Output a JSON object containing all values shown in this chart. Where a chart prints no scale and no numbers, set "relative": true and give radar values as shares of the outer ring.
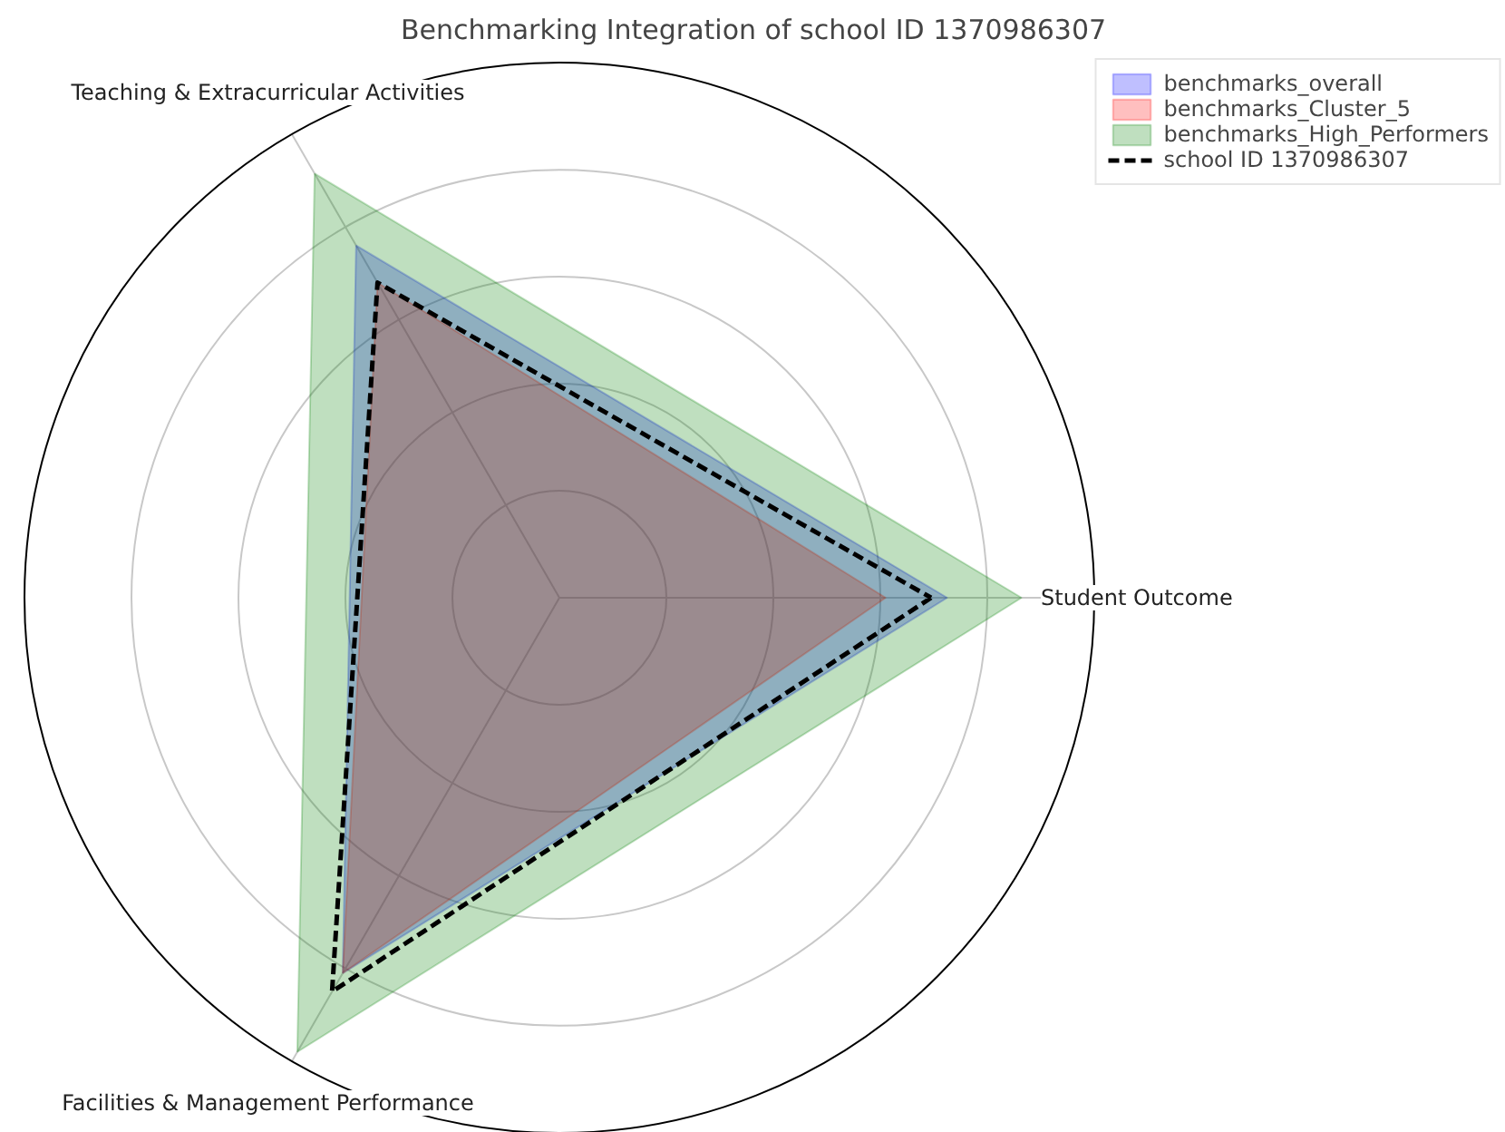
{
  "chart_data": {
    "type": "radar",
    "title": "Benchmarking Integration of school ID 1370986307",
    "relative": true,
    "grid": true,
    "legend": "top right",
    "categories": [
      "Student Outcome",
      "Facilities & Management Performance",
      "Teaching & Extracurricular Activities"
    ],
    "series": [
      {
        "name": "benchmarks_overall",
        "color": "#0000ff",
        "values": [
          0.725,
          0.81,
          0.76
        ]
      },
      {
        "name": "benchmarks_Cluster_5",
        "color": "#ff0000",
        "values": [
          0.61,
          0.81,
          0.68
        ]
      },
      {
        "name": "benchmarks_High_Performers",
        "color": "#008000",
        "values": [
          0.864,
          0.98,
          0.915
        ]
      },
      {
        "name": "school ID 1370986307",
        "color": "#000000",
        "line_style": "dashed",
        "values": [
          0.695,
          0.85,
          0.68
        ]
      }
    ]
  }
}
